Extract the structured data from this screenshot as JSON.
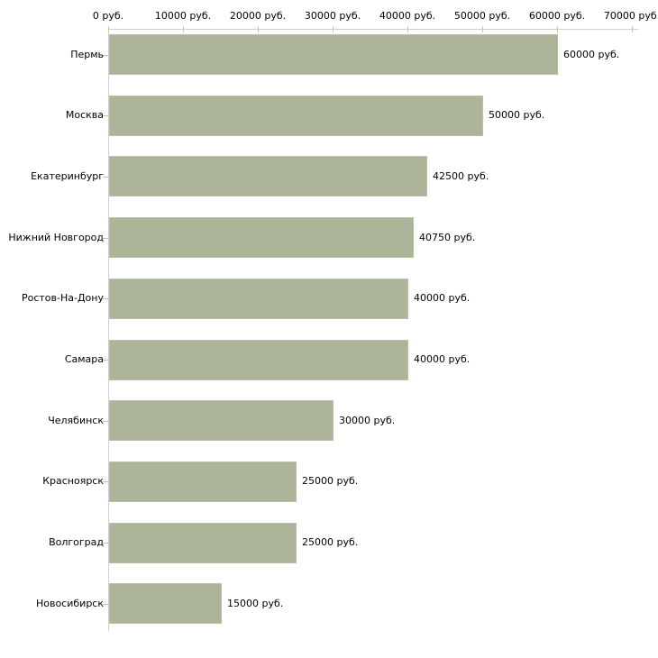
{
  "chart_data": {
    "type": "bar",
    "orientation": "horizontal",
    "title": "",
    "categories": [
      "Пермь",
      "Москва",
      "Екатеринбург",
      "Нижний Новгород",
      "Ростов-На-Дону",
      "Самара",
      "Челябинск",
      "Красноярск",
      "Волгоград",
      "Новосибирск"
    ],
    "values": [
      60000,
      50000,
      42500,
      40750,
      40000,
      40000,
      30000,
      25000,
      25000,
      15000
    ],
    "value_labels": [
      "60000 руб.",
      "50000 руб.",
      "42500 руб.",
      "40750 руб.",
      "40000 руб.",
      "40000 руб.",
      "30000 руб.",
      "25000 руб.",
      "25000 руб.",
      "15000 руб."
    ],
    "x_axis": {
      "position": "top",
      "min": 0,
      "max": 70000,
      "tick_interval": 10000,
      "tick_values": [
        0,
        10000,
        20000,
        30000,
        40000,
        50000,
        60000,
        70000
      ],
      "tick_labels": [
        "0 руб.",
        "10000 руб.",
        "20000 руб.",
        "30000 руб.",
        "40000 руб.",
        "50000 руб.",
        "60000 руб.",
        "70000 руб."
      ]
    },
    "legend": "none",
    "grid": "off",
    "colors": {
      "bar_fill": "#acb499",
      "bar_border": "#b8bfa6",
      "axis_line": "#d0d0d0",
      "tick_mark": "#c8c8a0",
      "text": "#000000",
      "background": "#ffffff"
    }
  }
}
